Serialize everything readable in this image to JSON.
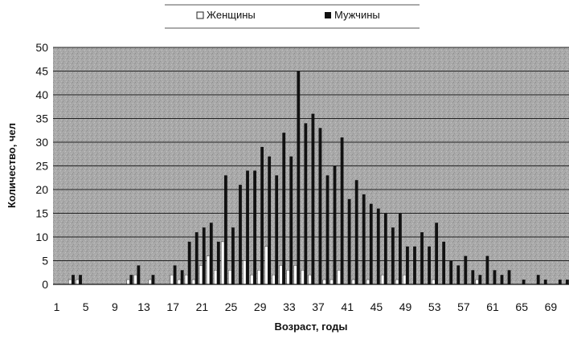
{
  "chart_data": {
    "type": "bar",
    "title": "",
    "xlabel": "Возраст, годы",
    "ylabel": "Количество, чел",
    "ylim": [
      0,
      50
    ],
    "yticks": [
      0,
      5,
      10,
      15,
      20,
      25,
      30,
      35,
      40,
      45,
      50
    ],
    "xticks": [
      1,
      5,
      9,
      13,
      17,
      21,
      25,
      29,
      33,
      37,
      41,
      45,
      49,
      53,
      57,
      61,
      65,
      69
    ],
    "grid": "horizontal",
    "legend_position": "top-center",
    "x": [
      1,
      2,
      3,
      4,
      5,
      6,
      7,
      8,
      9,
      10,
      11,
      12,
      13,
      14,
      15,
      16,
      17,
      18,
      19,
      20,
      21,
      22,
      23,
      24,
      25,
      26,
      27,
      28,
      29,
      30,
      31,
      32,
      33,
      34,
      35,
      36,
      37,
      38,
      39,
      40,
      41,
      42,
      43,
      44,
      45,
      46,
      47,
      48,
      49,
      50,
      51,
      52,
      53,
      54,
      55,
      56,
      57,
      58,
      59,
      60,
      61,
      62,
      63,
      64,
      65,
      66,
      67,
      68,
      69,
      70,
      71
    ],
    "series": [
      {
        "name": "Женщины",
        "color": "#ffffff",
        "values": [
          0,
          0,
          1,
          1,
          0,
          0,
          0,
          0,
          0,
          0,
          1,
          2,
          0,
          1,
          0,
          0,
          2,
          1,
          2,
          1,
          4,
          6,
          3,
          9,
          3,
          0,
          5,
          2,
          3,
          8,
          2,
          4,
          3,
          4,
          3,
          2,
          0,
          1,
          1,
          3,
          0,
          1,
          0,
          1,
          0,
          2,
          0,
          1,
          2,
          0,
          0,
          0,
          1,
          0,
          0,
          0,
          0,
          0,
          1,
          0,
          0,
          0,
          0,
          0,
          0,
          0,
          0,
          0,
          0,
          0,
          0
        ]
      },
      {
        "name": "Мужчины",
        "color": "#111111",
        "values": [
          0,
          0,
          2,
          2,
          0,
          0,
          0,
          0,
          0,
          0,
          2,
          4,
          0,
          2,
          0,
          0,
          4,
          3,
          9,
          11,
          12,
          13,
          9,
          23,
          12,
          21,
          24,
          24,
          29,
          27,
          23,
          32,
          27,
          45,
          34,
          36,
          33,
          23,
          25,
          31,
          18,
          22,
          19,
          17,
          16,
          15,
          12,
          15,
          8,
          8,
          11,
          8,
          13,
          9,
          5,
          4,
          6,
          3,
          2,
          6,
          3,
          2,
          3,
          0,
          1,
          0,
          2,
          1,
          0,
          1,
          1
        ]
      }
    ]
  }
}
